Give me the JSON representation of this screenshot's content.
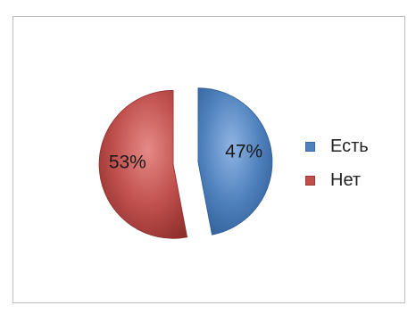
{
  "chart_data": {
    "type": "pie",
    "categories": [
      "Есть",
      "Нет"
    ],
    "values": [
      47,
      53
    ],
    "value_labels": [
      "47%",
      "53%"
    ],
    "colors": [
      "#4f81bd",
      "#c0504d"
    ],
    "exploded": true,
    "legend_position": "right"
  },
  "legend": {
    "items": [
      {
        "label": "Есть",
        "color": "#4f81bd"
      },
      {
        "label": "Нет",
        "color": "#c0504d"
      }
    ]
  }
}
